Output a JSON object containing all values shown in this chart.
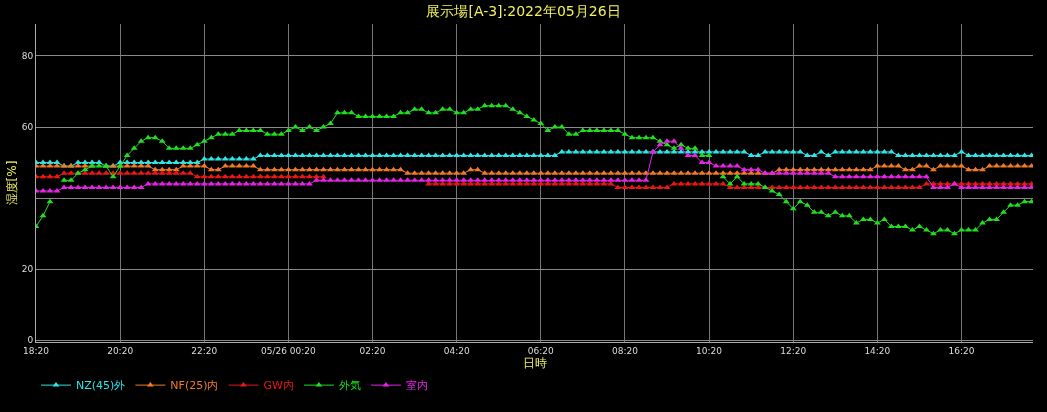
{
  "chart_data": {
    "type": "line",
    "title": "展示場[A-3]:2022年05月26日",
    "xlabel": "日時",
    "ylabel": "湿度[%]",
    "x": [
      "2022-05-25T18:20",
      "2022-05-25T18:30",
      "2022-05-25T18:40",
      "2022-05-25T18:50",
      "2022-05-25T19:00",
      "2022-05-25T19:10",
      "2022-05-25T19:20",
      "2022-05-25T19:30",
      "2022-05-25T19:40",
      "2022-05-25T19:50",
      "2022-05-25T20:00",
      "2022-05-25T20:10",
      "2022-05-25T20:20",
      "2022-05-25T20:30",
      "2022-05-25T20:40",
      "2022-05-25T20:50",
      "2022-05-25T21:00",
      "2022-05-25T21:10",
      "2022-05-25T21:20",
      "2022-05-25T21:30",
      "2022-05-25T21:40",
      "2022-05-25T21:50",
      "2022-05-25T22:00",
      "2022-05-25T22:10",
      "2022-05-25T22:20",
      "2022-05-25T22:30",
      "2022-05-25T22:40",
      "2022-05-25T22:50",
      "2022-05-25T23:00",
      "2022-05-25T23:10",
      "2022-05-25T23:20",
      "2022-05-25T23:30",
      "2022-05-25T23:40",
      "2022-05-25T23:50",
      "2022-05-26T00:00",
      "2022-05-26T00:10",
      "2022-05-26T00:20",
      "2022-05-26T00:30",
      "2022-05-26T00:40",
      "2022-05-26T00:50",
      "2022-05-26T01:00",
      "2022-05-26T01:10",
      "2022-05-26T01:20",
      "2022-05-26T01:30",
      "2022-05-26T01:40",
      "2022-05-26T01:50",
      "2022-05-26T02:00",
      "2022-05-26T02:10",
      "2022-05-26T02:20",
      "2022-05-26T02:30",
      "2022-05-26T02:40",
      "2022-05-26T02:50",
      "2022-05-26T03:00",
      "2022-05-26T03:10",
      "2022-05-26T03:20",
      "2022-05-26T03:30",
      "2022-05-26T03:40",
      "2022-05-26T03:50",
      "2022-05-26T04:00",
      "2022-05-26T04:10",
      "2022-05-26T04:20",
      "2022-05-26T04:30",
      "2022-05-26T04:40",
      "2022-05-26T04:50",
      "2022-05-26T05:00",
      "2022-05-26T05:10",
      "2022-05-26T05:20",
      "2022-05-26T05:30",
      "2022-05-26T05:40",
      "2022-05-26T05:50",
      "2022-05-26T06:00",
      "2022-05-26T06:10",
      "2022-05-26T06:20",
      "2022-05-26T06:30",
      "2022-05-26T06:40",
      "2022-05-26T06:50",
      "2022-05-26T07:00",
      "2022-05-26T07:10",
      "2022-05-26T07:20",
      "2022-05-26T07:30",
      "2022-05-26T07:40",
      "2022-05-26T07:50",
      "2022-05-26T08:00",
      "2022-05-26T08:10",
      "2022-05-26T08:20",
      "2022-05-26T08:30",
      "2022-05-26T08:40",
      "2022-05-26T08:50",
      "2022-05-26T09:00",
      "2022-05-26T09:10",
      "2022-05-26T09:20",
      "2022-05-26T09:30",
      "2022-05-26T09:40",
      "2022-05-26T09:50",
      "2022-05-26T10:00",
      "2022-05-26T10:10",
      "2022-05-26T10:20",
      "2022-05-26T10:30",
      "2022-05-26T10:40",
      "2022-05-26T10:50",
      "2022-05-26T11:00",
      "2022-05-26T11:10",
      "2022-05-26T11:20",
      "2022-05-26T11:30",
      "2022-05-26T11:40",
      "2022-05-26T11:50",
      "2022-05-26T12:00",
      "2022-05-26T12:10",
      "2022-05-26T12:20",
      "2022-05-26T12:30",
      "2022-05-26T12:40",
      "2022-05-26T12:50",
      "2022-05-26T13:00",
      "2022-05-26T13:10",
      "2022-05-26T13:20",
      "2022-05-26T13:30",
      "2022-05-26T13:40",
      "2022-05-26T13:50",
      "2022-05-26T14:00",
      "2022-05-26T14:10",
      "2022-05-26T14:20",
      "2022-05-26T14:30",
      "2022-05-26T14:40",
      "2022-05-26T14:50",
      "2022-05-26T15:00",
      "2022-05-26T15:10",
      "2022-05-26T15:20",
      "2022-05-26T15:30",
      "2022-05-26T15:40",
      "2022-05-26T15:50",
      "2022-05-26T16:00",
      "2022-05-26T16:10",
      "2022-05-26T16:20",
      "2022-05-26T16:30",
      "2022-05-26T16:40",
      "2022-05-26T16:50",
      "2022-05-26T17:00",
      "2022-05-26T17:10",
      "2022-05-26T17:20",
      "2022-05-26T17:30",
      "2022-05-26T17:40",
      "2022-05-26T17:50",
      "2022-05-26T18:00"
    ],
    "series": [
      {
        "name": "NZ(45)外",
        "color": "#2ee6e6",
        "values": [
          50,
          50,
          50,
          50,
          49,
          49,
          50,
          50,
          50,
          50,
          49,
          49,
          50,
          50,
          50,
          50,
          50,
          50,
          50,
          50,
          50,
          50,
          50,
          50,
          51,
          51,
          51,
          51,
          51,
          51,
          51,
          51,
          52,
          52,
          52,
          52,
          52,
          52,
          52,
          52,
          52,
          52,
          52,
          52,
          52,
          52,
          52,
          52,
          52,
          52,
          52,
          52,
          52,
          52,
          52,
          52,
          52,
          52,
          52,
          52,
          52,
          52,
          52,
          52,
          52,
          52,
          52,
          52,
          52,
          52,
          52,
          52,
          52,
          52,
          52,
          53,
          53,
          53,
          53,
          53,
          53,
          53,
          53,
          53,
          53,
          53,
          53,
          53,
          53,
          53,
          53,
          53,
          53,
          53,
          53,
          53,
          53,
          53,
          53,
          53,
          53,
          53,
          52,
          52,
          53,
          53,
          53,
          53,
          53,
          53,
          52,
          52,
          53,
          52,
          53,
          53,
          53,
          53,
          53,
          53,
          53,
          53,
          53,
          52,
          52,
          52,
          52,
          52,
          52,
          52,
          52,
          52,
          53,
          52,
          52,
          52,
          52,
          52,
          52,
          52,
          52,
          52,
          52
        ]
      },
      {
        "name": "NF(25)内",
        "color": "#f07a28",
        "values": [
          49,
          49,
          49,
          49,
          49,
          49,
          49,
          49,
          49,
          null,
          49,
          49,
          49,
          49,
          49,
          49,
          49,
          48,
          48,
          48,
          48,
          49,
          49,
          49,
          49,
          48,
          48,
          49,
          49,
          49,
          49,
          49,
          48,
          48,
          48,
          48,
          48,
          48,
          48,
          48,
          48,
          48,
          48,
          48,
          48,
          48,
          48,
          48,
          48,
          48,
          48,
          48,
          48,
          47,
          47,
          47,
          47,
          47,
          47,
          47,
          47,
          47,
          48,
          48,
          47,
          47,
          47,
          47,
          47,
          47,
          47,
          47,
          47,
          47,
          47,
          47,
          47,
          47,
          47,
          47,
          47,
          47,
          47,
          47,
          47,
          47,
          47,
          47,
          47,
          47,
          47,
          47,
          47,
          47,
          47,
          47,
          47,
          47,
          47,
          47,
          47,
          47,
          47,
          47,
          47,
          47,
          48,
          48,
          48,
          48,
          48,
          48,
          48,
          48,
          48,
          48,
          48,
          48,
          48,
          48,
          49,
          49,
          49,
          49,
          48,
          48,
          49,
          49,
          48,
          49,
          49,
          49,
          49,
          48,
          48,
          48,
          49,
          49,
          49,
          49,
          49,
          49,
          49
        ]
      },
      {
        "name": "GW内",
        "color": "#e81818",
        "values": [
          46,
          46,
          46,
          46,
          47,
          47,
          47,
          47,
          47,
          47,
          47,
          47,
          47,
          47,
          47,
          47,
          47,
          47,
          47,
          47,
          47,
          47,
          47,
          46,
          46,
          46,
          46,
          46,
          46,
          46,
          46,
          46,
          46,
          46,
          46,
          46,
          46,
          46,
          46,
          46,
          46,
          46,
          null,
          null,
          null,
          null,
          null,
          null,
          null,
          null,
          null,
          null,
          null,
          null,
          null,
          null,
          44,
          44,
          44,
          44,
          44,
          44,
          44,
          44,
          44,
          44,
          44,
          44,
          44,
          44,
          44,
          44,
          44,
          44,
          44,
          44,
          44,
          44,
          44,
          44,
          44,
          44,
          44,
          43,
          43,
          43,
          43,
          43,
          43,
          43,
          43,
          44,
          44,
          44,
          44,
          44,
          44,
          44,
          44,
          43,
          43,
          43,
          43,
          43,
          43,
          43,
          43,
          43,
          43,
          43,
          43,
          43,
          43,
          43,
          43,
          43,
          43,
          43,
          43,
          43,
          43,
          43,
          43,
          43,
          43,
          43,
          43,
          44,
          44,
          44,
          44,
          44,
          44,
          44,
          44,
          44,
          44,
          44,
          44,
          44,
          44,
          44,
          44
        ]
      },
      {
        "name": "外気",
        "color": "#22dd22",
        "values": [
          32,
          35,
          39,
          null,
          45,
          45,
          47,
          48,
          49,
          49,
          49,
          46,
          49,
          52,
          54,
          56,
          57,
          57,
          56,
          54,
          54,
          54,
          54,
          55,
          56,
          57,
          58,
          58,
          58,
          59,
          59,
          59,
          59,
          58,
          58,
          58,
          59,
          60,
          59,
          60,
          59,
          60,
          61,
          64,
          64,
          64,
          63,
          63,
          63,
          63,
          63,
          63,
          64,
          64,
          65,
          65,
          64,
          64,
          65,
          65,
          64,
          64,
          65,
          65,
          66,
          66,
          66,
          66,
          65,
          64,
          63,
          62,
          61,
          59,
          60,
          60,
          58,
          58,
          59,
          59,
          59,
          59,
          59,
          59,
          58,
          57,
          57,
          57,
          57,
          56,
          55,
          54,
          55,
          54,
          54,
          52,
          52,
          null,
          46,
          44,
          46,
          44,
          44,
          44,
          43,
          42,
          41,
          39,
          37,
          39,
          38,
          36,
          36,
          35,
          36,
          35,
          35,
          33,
          34,
          34,
          33,
          34,
          32,
          32,
          32,
          31,
          32,
          31,
          30,
          31,
          31,
          30,
          31,
          31,
          31,
          33,
          34,
          34,
          36,
          38,
          38,
          39,
          39
        ]
      },
      {
        "name": "室内",
        "color": "#e624e6",
        "values": [
          42,
          42,
          42,
          42,
          43,
          43,
          43,
          43,
          43,
          43,
          43,
          43,
          43,
          43,
          43,
          43,
          44,
          44,
          44,
          44,
          44,
          44,
          44,
          44,
          44,
          44,
          44,
          44,
          44,
          44,
          44,
          44,
          44,
          44,
          44,
          44,
          44,
          44,
          44,
          44,
          45,
          45,
          45,
          45,
          45,
          45,
          45,
          45,
          45,
          45,
          45,
          45,
          45,
          45,
          45,
          45,
          45,
          45,
          45,
          45,
          45,
          45,
          45,
          45,
          45,
          45,
          45,
          45,
          45,
          45,
          45,
          45,
          45,
          45,
          45,
          45,
          45,
          45,
          45,
          45,
          45,
          45,
          45,
          45,
          45,
          45,
          45,
          45,
          53,
          55,
          56,
          56,
          54,
          52,
          52,
          50,
          50,
          49,
          49,
          49,
          49,
          48,
          48,
          48,
          47,
          47,
          47,
          47,
          47,
          47,
          47,
          47,
          47,
          47,
          46,
          46,
          46,
          46,
          46,
          46,
          46,
          46,
          46,
          46,
          46,
          46,
          46,
          46,
          43,
          43,
          43,
          44,
          43,
          43,
          43,
          43,
          43,
          43,
          43,
          43,
          43,
          43,
          43
        ]
      }
    ],
    "xlim": [
      "2022-05-25T18:20",
      "2022-05-26T18:02"
    ],
    "xticks": [
      {
        "value": "2022-05-25T18:20",
        "label": "18:20"
      },
      {
        "value": "2022-05-25T20:20",
        "label": "20:20"
      },
      {
        "value": "2022-05-25T22:20",
        "label": "22:20"
      },
      {
        "value": "2022-05-26T00:20",
        "label": "05/26 00:20"
      },
      {
        "value": "2022-05-26T02:20",
        "label": "02:20"
      },
      {
        "value": "2022-05-26T04:20",
        "label": "04:20"
      },
      {
        "value": "2022-05-26T06:20",
        "label": "06:20"
      },
      {
        "value": "2022-05-26T08:20",
        "label": "08:20"
      },
      {
        "value": "2022-05-26T10:20",
        "label": "10:20"
      },
      {
        "value": "2022-05-26T12:20",
        "label": "12:20"
      },
      {
        "value": "2022-05-26T14:20",
        "label": "14:20"
      },
      {
        "value": "2022-05-26T16:20",
        "label": "16:20"
      }
    ],
    "ylim": [
      -0.5,
      89
    ],
    "yticks": [
      0,
      20,
      {
        "value": 40,
        "label": null
      },
      60,
      80
    ],
    "grid": true,
    "legend": "bottom left",
    "marker": "triangle",
    "line_style": "solid"
  }
}
